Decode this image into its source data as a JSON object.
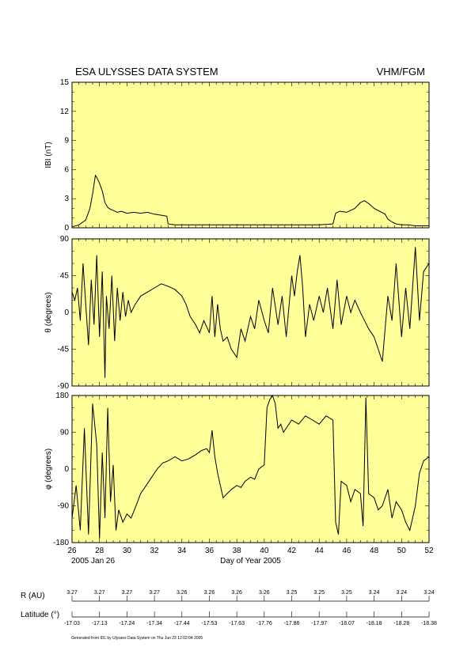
{
  "header": {
    "left": "ESA ULYSSES DATA SYSTEM",
    "right": "VHM/FGM"
  },
  "footer": "Generated from IDL by Ulysses Data System on Thu Jun 23 12:02:04 2005",
  "colors": {
    "panel_bg": "#ffff99",
    "trace": "#000000",
    "axis": "#000000"
  },
  "chart_data": [
    {
      "type": "line",
      "ylabel": "IBI (nT)",
      "ylim": [
        0,
        15
      ],
      "yticks": [
        0,
        3,
        6,
        9,
        12,
        15
      ],
      "xlim": [
        26,
        52
      ],
      "series": [
        {
          "x": [
            26,
            26.5,
            27,
            27.3,
            27.5,
            27.7,
            27.8,
            28,
            28.2,
            28.4,
            28.6,
            28.8,
            29,
            29.3,
            29.6,
            30,
            30.5,
            31,
            31.5,
            32,
            32.5,
            32.9,
            33,
            33.5,
            34,
            35,
            36,
            37,
            38,
            39,
            40,
            41,
            42,
            43,
            44,
            45,
            45.2,
            45.5,
            46,
            46.3,
            46.6,
            47,
            47.3,
            47.6,
            48,
            48.4,
            48.8,
            49,
            49.3,
            49.6,
            50,
            50.5,
            51,
            51.5,
            52
          ],
          "y": [
            0.1,
            0.3,
            0.8,
            2.0,
            3.5,
            5.4,
            5.2,
            4.6,
            3.8,
            2.6,
            2.1,
            1.9,
            1.8,
            1.6,
            1.7,
            1.5,
            1.6,
            1.5,
            1.6,
            1.4,
            1.3,
            1.2,
            0.4,
            0.3,
            0.3,
            0.3,
            0.3,
            0.3,
            0.3,
            0.3,
            0.3,
            0.3,
            0.3,
            0.3,
            0.3,
            0.4,
            1.5,
            1.7,
            1.6,
            1.8,
            2.0,
            2.6,
            2.8,
            2.5,
            2.0,
            1.7,
            1.4,
            0.9,
            0.6,
            0.4,
            0.3,
            0.3,
            0.2,
            0.2,
            0.2
          ]
        }
      ]
    },
    {
      "type": "line",
      "ylabel": "θ (degrees)",
      "ylim": [
        -90,
        90
      ],
      "yticks": [
        -90,
        -45,
        0,
        45,
        90
      ],
      "xlim": [
        26,
        52
      ],
      "series": [
        {
          "x": [
            26,
            26.2,
            26.4,
            26.6,
            26.8,
            27,
            27.2,
            27.4,
            27.6,
            27.8,
            28,
            28.2,
            28.4,
            28.5,
            28.7,
            28.9,
            29.1,
            29.3,
            29.5,
            29.7,
            29.9,
            30.1,
            30.3,
            30.6,
            31,
            31.5,
            32,
            32.5,
            33,
            33.5,
            34,
            34.3,
            34.6,
            35,
            35.3,
            35.6,
            36,
            36.2,
            36.4,
            36.6,
            36.8,
            37,
            37.3,
            37.6,
            38,
            38.3,
            38.6,
            39,
            39.3,
            39.6,
            40,
            40.3,
            40.6,
            41,
            41.3,
            41.6,
            42,
            42.2,
            42.4,
            42.6,
            42.8,
            43,
            43.3,
            43.6,
            44,
            44.3,
            44.6,
            45,
            45.3,
            45.6,
            46,
            46.3,
            46.6,
            47,
            47.3,
            47.6,
            48,
            48.3,
            48.6,
            49,
            49.3,
            49.6,
            50,
            50.3,
            50.6,
            51,
            51.3,
            51.6,
            52
          ],
          "y": [
            25,
            15,
            30,
            -10,
            60,
            10,
            -40,
            40,
            -15,
            70,
            -30,
            50,
            -80,
            20,
            -20,
            45,
            -35,
            30,
            -10,
            25,
            -5,
            15,
            0,
            10,
            20,
            25,
            30,
            35,
            32,
            28,
            20,
            10,
            -5,
            -15,
            -25,
            -10,
            -25,
            20,
            -30,
            10,
            -20,
            -35,
            -30,
            -45,
            -55,
            -20,
            -35,
            -5,
            -20,
            15,
            -10,
            -25,
            30,
            -15,
            20,
            -30,
            45,
            20,
            50,
            70,
            30,
            -30,
            10,
            -10,
            20,
            0,
            30,
            -20,
            40,
            -15,
            20,
            0,
            15,
            0,
            -10,
            -20,
            -30,
            -45,
            -60,
            20,
            -10,
            60,
            -30,
            30,
            -20,
            80,
            -10,
            50,
            60
          ]
        }
      ]
    },
    {
      "type": "line",
      "ylabel": "φ (degrees)",
      "ylim": [
        -180,
        180
      ],
      "yticks": [
        -180,
        -90,
        0,
        90,
        180
      ],
      "xlim": [
        26,
        52
      ],
      "series": [
        {
          "x": [
            26,
            26.3,
            26.6,
            26.9,
            27.2,
            27.5,
            27.8,
            28,
            28.2,
            28.4,
            28.6,
            28.8,
            29,
            29.2,
            29.4,
            29.7,
            30,
            30.3,
            30.6,
            31,
            31.4,
            31.8,
            32.2,
            32.6,
            33,
            33.5,
            34,
            34.5,
            35,
            35.4,
            35.8,
            36,
            36.2,
            36.4,
            36.6,
            37,
            37.3,
            37.6,
            38,
            38.3,
            38.6,
            39,
            39.3,
            39.6,
            40,
            40.2,
            40.4,
            40.6,
            40.8,
            41,
            41.2,
            41.4,
            41.6,
            42,
            42.5,
            43,
            43.5,
            44,
            44.5,
            45,
            45.2,
            45.4,
            45.6,
            46,
            46.3,
            46.6,
            47,
            47.2,
            47.4,
            47.6,
            48,
            48.3,
            48.6,
            49,
            49.3,
            49.6,
            50,
            50.3,
            50.6,
            51,
            51.3,
            51.6,
            52
          ],
          "y": [
            -120,
            -40,
            -150,
            100,
            -160,
            160,
            60,
            -170,
            40,
            -120,
            150,
            -80,
            10,
            -150,
            -100,
            -130,
            -110,
            -120,
            -95,
            -60,
            -40,
            -20,
            0,
            15,
            20,
            30,
            20,
            25,
            35,
            45,
            50,
            40,
            95,
            30,
            -10,
            -70,
            -60,
            -50,
            -40,
            -45,
            -30,
            -20,
            -25,
            0,
            10,
            150,
            170,
            180,
            160,
            100,
            110,
            90,
            100,
            120,
            110,
            130,
            120,
            110,
            130,
            120,
            -130,
            -160,
            -30,
            -40,
            -80,
            -50,
            -60,
            -140,
            175,
            -60,
            -70,
            -100,
            -90,
            -50,
            -120,
            -80,
            -100,
            -130,
            -150,
            -90,
            -10,
            20,
            30
          ]
        }
      ]
    }
  ],
  "x_axis": {
    "ticks": [
      "26",
      "28",
      "30",
      "32",
      "34",
      "36",
      "38",
      "40",
      "42",
      "44",
      "46",
      "48",
      "50",
      "52"
    ],
    "date_label": "2005 Jan 26",
    "label": "Day of Year 2005"
  },
  "ephemeris": {
    "r_label": "R (AU)",
    "lat_label": "Latitude (°)",
    "r_values": [
      "3.27",
      "3.27",
      "3.27",
      "3.27",
      "3.26",
      "3.26",
      "3.26",
      "3.26",
      "3.25",
      "3.25",
      "3.25",
      "3.24",
      "3.24",
      "3.24"
    ],
    "lat_values": [
      "-17.03",
      "-17.13",
      "-17.24",
      "-17.34",
      "-17.44",
      "-17.53",
      "-17.63",
      "-17.76",
      "-17.86",
      "-17.97",
      "-18.07",
      "-18.18",
      "-18.28",
      "-18.38"
    ]
  }
}
